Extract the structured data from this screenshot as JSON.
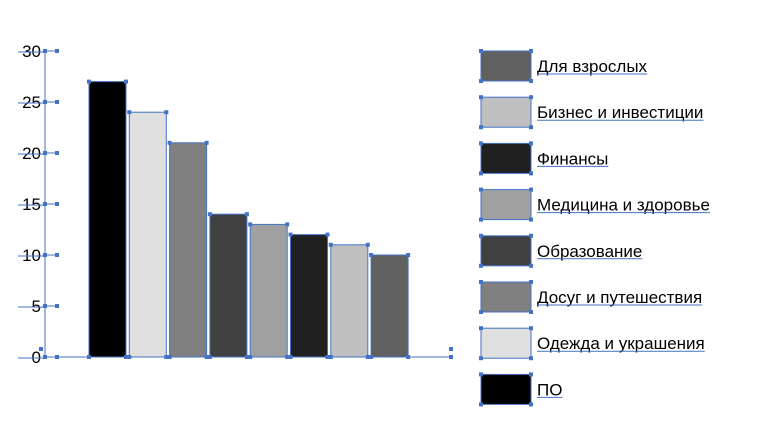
{
  "chart_data": {
    "type": "bar",
    "categories": [
      "ПО",
      "Одежда и украшения",
      "Досуг и путешествия",
      "Образование",
      "Медицина и здоровье",
      "Финансы",
      "Бизнес и инвестиции",
      "Для взрослых"
    ],
    "values": [
      27,
      24,
      21,
      14,
      13,
      12,
      11,
      10
    ],
    "colors": [
      "#000000",
      "#e0e0e0",
      "#808080",
      "#404040",
      "#a0a0a0",
      "#202020",
      "#c0c0c0",
      "#606060"
    ],
    "ylim": [
      0,
      30
    ],
    "yticks": [
      "0",
      "5",
      "10",
      "15",
      "20",
      "25",
      "30"
    ],
    "legend_order": [
      "Для взрослых",
      "Бизнес и инвестиции",
      "Финансы",
      "Медицина и здоровье",
      "Образование",
      "Досуг и путешествия",
      "Одежда и украшения",
      "ПО"
    ],
    "legend_colors": [
      "#606060",
      "#c0c0c0",
      "#202020",
      "#a0a0a0",
      "#404040",
      "#808080",
      "#e0e0e0",
      "#000000"
    ],
    "legend_position": "right",
    "grid": false,
    "selection_color": "#4472c4"
  }
}
